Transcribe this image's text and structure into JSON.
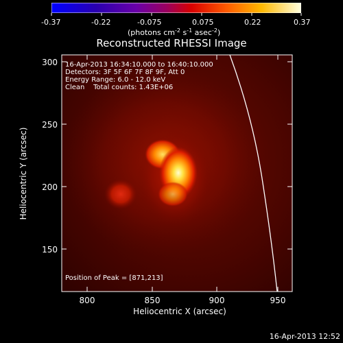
{
  "colorbar": {
    "ticks": [
      "-0.37",
      "-0.22",
      "-0.075",
      "0.075",
      "0.22",
      "0.37"
    ],
    "min": -0.37,
    "max": 0.37,
    "units_label": "(photons cm",
    "units_exp1": "-2",
    "units_mid": " s",
    "units_exp2": "-1",
    "units_mid2": " asec",
    "units_exp3": "-2",
    "units_end": ")",
    "colors": [
      "#0000ff",
      "#3a00a8",
      "#7a00c0",
      "#c0003a",
      "#ff0000",
      "#ff7a00",
      "#ffd000",
      "#ffffe0"
    ]
  },
  "title": "Reconstructed RHESSI Image",
  "info": {
    "time_range": "16-Apr-2013 16:34:10.000 to 16:40:10.000",
    "detectors": "Detectors: 3F 5F 6F 7F 8F 9F, Att 0",
    "energy": "Energy Range: 6.0 - 12.0 keV",
    "clean": "Clean    Total counts: 1.43E+06",
    "peak": "Position of Peak = [871,213]"
  },
  "axes": {
    "xlabel": "Heliocentric X (arcsec)",
    "ylabel": "Heliocentric Y (arcsec)",
    "x_ticks": [
      "800",
      "850",
      "900",
      "950"
    ],
    "y_ticks": [
      "300",
      "250",
      "200",
      "150"
    ],
    "xlim": [
      770,
      960
    ],
    "ylim": [
      115,
      305
    ]
  },
  "image": {
    "peak": [
      871,
      213
    ],
    "secondary_source": [
      821,
      195
    ],
    "limb_color": "#ffffff"
  },
  "footer": {
    "timestamp": "16-Apr-2013 12:52"
  }
}
